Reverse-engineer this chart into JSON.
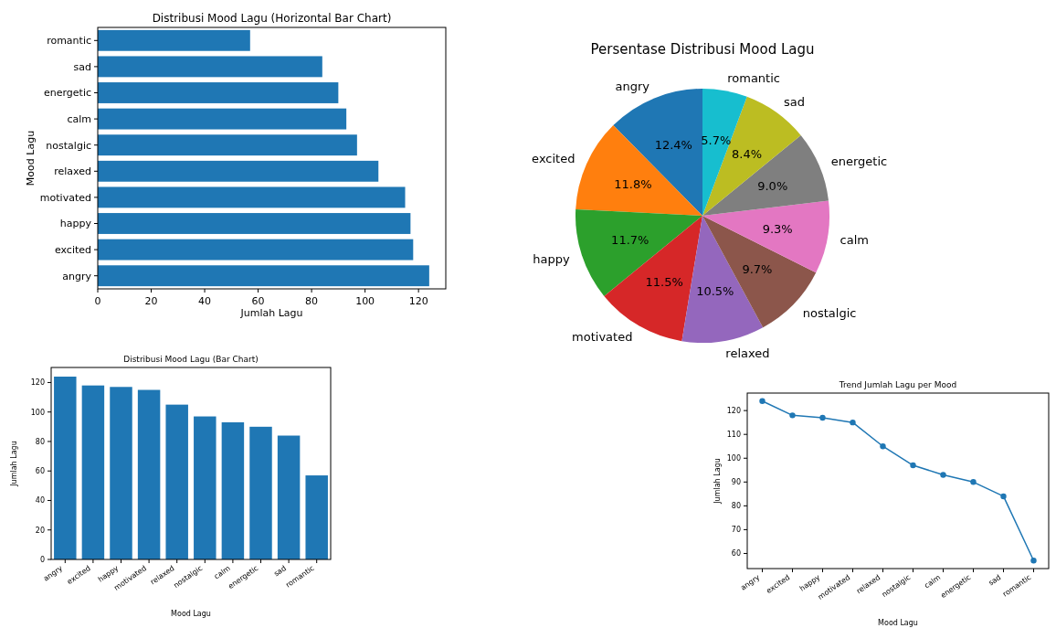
{
  "chart_data": [
    {
      "type": "bar",
      "orientation": "horizontal",
      "title": "Distribusi Mood Lagu (Horizontal Bar Chart)",
      "xlabel": "Jumlah Lagu",
      "ylabel": "Mood Lagu",
      "categories": [
        "romantic",
        "sad",
        "energetic",
        "calm",
        "nostalgic",
        "relaxed",
        "motivated",
        "happy",
        "excited",
        "angry"
      ],
      "values": [
        57,
        84,
        90,
        93,
        97,
        105,
        115,
        117,
        118,
        124
      ],
      "color": "#1f77b4",
      "xlim": [
        0,
        130.2
      ],
      "xticks": [
        0,
        20,
        40,
        60,
        80,
        100,
        120
      ]
    },
    {
      "type": "pie",
      "title": "Persentase Distribusi Mood Lagu",
      "categories": [
        "angry",
        "excited",
        "happy",
        "motivated",
        "relaxed",
        "nostalgic",
        "calm",
        "energetic",
        "sad",
        "romantic"
      ],
      "values": [
        12.4,
        11.8,
        11.7,
        11.5,
        10.5,
        9.7,
        9.3,
        9.0,
        8.4,
        5.7
      ],
      "value_labels": [
        "12.4%",
        "11.8%",
        "11.7%",
        "11.5%",
        "10.5%",
        "9.7%",
        "9.3%",
        "9.0%",
        "8.4%",
        "5.7%"
      ],
      "colors": [
        "#1f77b4",
        "#ff7f0e",
        "#2ca02c",
        "#d62728",
        "#9467bd",
        "#8c564b",
        "#e377c2",
        "#7f7f7f",
        "#bcbd22",
        "#17becf"
      ]
    },
    {
      "type": "bar",
      "title": "Distribusi Mood Lagu (Bar Chart)",
      "xlabel": "Mood Lagu",
      "ylabel": "Jumlah Lagu",
      "categories": [
        "angry",
        "excited",
        "happy",
        "motivated",
        "relaxed",
        "nostalgic",
        "calm",
        "energetic",
        "sad",
        "romantic"
      ],
      "values": [
        124,
        118,
        117,
        115,
        105,
        97,
        93,
        90,
        84,
        57
      ],
      "color": "#1f77b4",
      "ylim": [
        0,
        130.2
      ],
      "yticks": [
        0,
        20,
        40,
        60,
        80,
        100,
        120
      ]
    },
    {
      "type": "line",
      "title": "Trend Jumlah Lagu per Mood",
      "xlabel": "Mood Lagu",
      "ylabel": "Jumlah Lagu",
      "categories": [
        "angry",
        "excited",
        "happy",
        "motivated",
        "relaxed",
        "nostalgic",
        "calm",
        "energetic",
        "sad",
        "romantic"
      ],
      "values": [
        124,
        118,
        117,
        115,
        105,
        97,
        93,
        90,
        84,
        57
      ],
      "color": "#1f77b4",
      "marker": "circle",
      "ylim": [
        53.65,
        127.35
      ],
      "yticks": [
        60,
        70,
        80,
        90,
        100,
        110,
        120
      ]
    }
  ]
}
